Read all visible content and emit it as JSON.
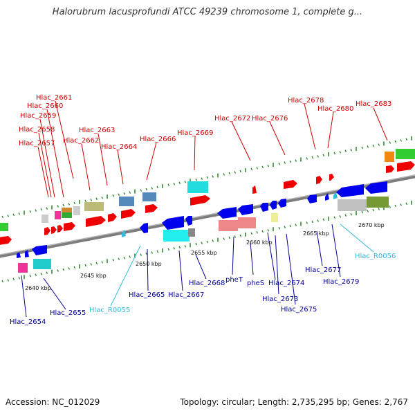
{
  "header": {
    "title": "Halorubrum lacusprofundi ATCC 49239 chromosome 1, complete g..."
  },
  "footer": {
    "accession": "Accession: NC_012029",
    "summary": "Topology: circular; Length: 2,735,295 bp; Genes: 2,767"
  },
  "colors": {
    "forward_label": "#cc0000",
    "reverse_label": "#000099",
    "rna_label": "#33bbdd",
    "backbone": "#8a8a8a",
    "tick": "#2e8b2e"
  },
  "map": {
    "kbp_labels": [
      "2640 kbp",
      "2645 kbp",
      "2650 kbp",
      "2655 kbp",
      "2660 kbp",
      "2665 kbp",
      "2670 kbp"
    ],
    "forward_genes": [
      "Hlac_2657",
      "Hlac_2658",
      "Hlac_2659",
      "Hlac_2660",
      "Hlac_2661",
      "Hlac_2662",
      "Hlac_2663",
      "Hlac_2664",
      "Hlac_2666",
      "Hlac_2669",
      "Hlac_2672",
      "Hlac_2676",
      "Hlac_2678",
      "Hlac_2680",
      "Hlac_2683"
    ],
    "reverse_genes": [
      "Hlac_2654",
      "Hlac_2655",
      "Hlac_R0055",
      "Hlac_2665",
      "Hlac_2667",
      "Hlac_2668",
      "pheT",
      "pheS",
      "Hlac_2673",
      "Hlac_2674",
      "Hlac_2675",
      "Hlac_2677",
      "Hlac_2679",
      "Hlac_R0056"
    ]
  }
}
